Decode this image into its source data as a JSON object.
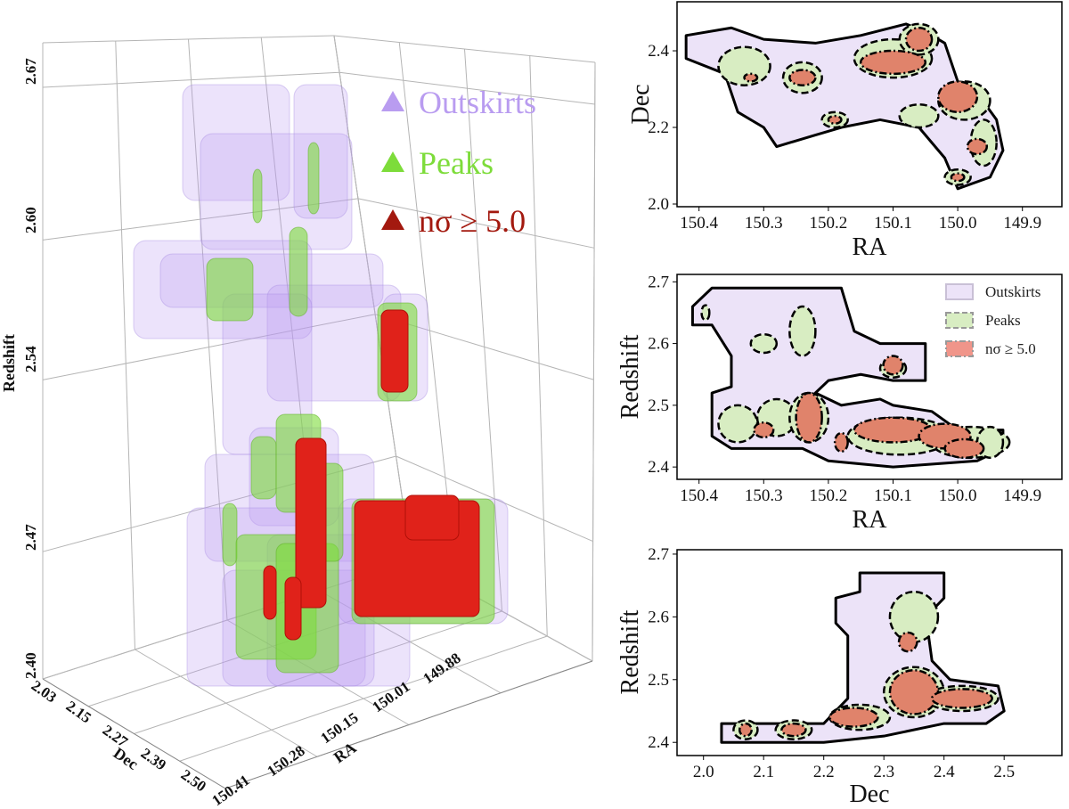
{
  "colors": {
    "outskirts_3d": "#b99cf0",
    "peaks_3d": "#7ddc3a",
    "sigma_3d": "#a3190f",
    "outskirts_fill": "#ece3f8",
    "peaks_fill": "#d8edc2",
    "sigma_fill": "#e0836b",
    "outline": "#000000"
  },
  "chart_data": [
    {
      "type": "3d-volume",
      "legend": {
        "placement": "top-right",
        "entries": [
          "Outskirts",
          "Peaks",
          "nσ ≥ 5.0"
        ]
      },
      "xlabel": "Dec",
      "ylabel": "RA",
      "zlabel": "Redshift",
      "dec_ticks": [
        "2.03",
        "2.15",
        "2.27",
        "2.39",
        "2.50"
      ],
      "ra_ticks": [
        "150.41",
        "150.28",
        "150.15",
        "150.01",
        "149.88"
      ],
      "z_ticks": [
        "2.40",
        "2.47",
        "2.54",
        "2.60",
        "2.67"
      ],
      "grid": true
    },
    {
      "type": "contour",
      "xlabel": "RA",
      "ylabel": "Dec",
      "xlim": [
        150.434,
        149.839
      ],
      "ylim": [
        1.993,
        2.528
      ],
      "xticks": [
        "150.4",
        "150.3",
        "150.2",
        "150.1",
        "150.0",
        "149.9"
      ],
      "yticks": [
        "2.0",
        "2.2",
        "2.4"
      ],
      "outskirts": [
        [
          150.42,
          2.44
        ],
        [
          150.35,
          2.46
        ],
        [
          150.3,
          2.43
        ],
        [
          150.22,
          2.42
        ],
        [
          150.15,
          2.44
        ],
        [
          150.08,
          2.47
        ],
        [
          150.05,
          2.45
        ],
        [
          150.02,
          2.42
        ],
        [
          150.0,
          2.32
        ],
        [
          149.97,
          2.29
        ],
        [
          149.94,
          2.22
        ],
        [
          149.93,
          2.14
        ],
        [
          149.95,
          2.07
        ],
        [
          150.0,
          2.04
        ],
        [
          150.02,
          2.12
        ],
        [
          150.06,
          2.2
        ],
        [
          150.12,
          2.22
        ],
        [
          150.18,
          2.2
        ],
        [
          150.22,
          2.18
        ],
        [
          150.28,
          2.15
        ],
        [
          150.3,
          2.2
        ],
        [
          150.34,
          2.24
        ],
        [
          150.36,
          2.34
        ],
        [
          150.42,
          2.38
        ]
      ],
      "peaks": [
        [
          150.33,
          2.36,
          0.04,
          0.05
        ],
        [
          150.24,
          2.33,
          0.03,
          0.04
        ],
        [
          150.1,
          2.38,
          0.06,
          0.05
        ],
        [
          150.06,
          2.43,
          0.03,
          0.04
        ],
        [
          149.99,
          2.27,
          0.04,
          0.05
        ],
        [
          149.96,
          2.16,
          0.02,
          0.06
        ],
        [
          150.19,
          2.22,
          0.02,
          0.02
        ],
        [
          150.06,
          2.23,
          0.03,
          0.03
        ],
        [
          150.0,
          2.07,
          0.02,
          0.02
        ]
      ],
      "sigma": [
        [
          150.24,
          2.33,
          0.02,
          0.02
        ],
        [
          150.1,
          2.37,
          0.05,
          0.03
        ],
        [
          150.06,
          2.43,
          0.02,
          0.03
        ],
        [
          150.0,
          2.28,
          0.03,
          0.04
        ],
        [
          149.97,
          2.15,
          0.015,
          0.02
        ],
        [
          150.0,
          2.07,
          0.01,
          0.01
        ],
        [
          150.32,
          2.33,
          0.01,
          0.01
        ],
        [
          150.19,
          2.22,
          0.01,
          0.01
        ]
      ]
    },
    {
      "type": "contour",
      "xlabel": "RA",
      "ylabel": "Redshift",
      "xlim": [
        150.434,
        149.839
      ],
      "ylim": [
        2.38,
        2.712
      ],
      "xticks": [
        "150.4",
        "150.3",
        "150.2",
        "150.1",
        "150.0",
        "149.9"
      ],
      "yticks": [
        "2.4",
        "2.5",
        "2.6",
        "2.7"
      ],
      "legend": {
        "placement": "top-right",
        "entries": [
          "Outskirts",
          "Peaks",
          "nσ ≥ 5.0"
        ]
      },
      "outskirts": [
        [
          150.41,
          2.66
        ],
        [
          150.38,
          2.69
        ],
        [
          150.18,
          2.69
        ],
        [
          150.16,
          2.62
        ],
        [
          150.12,
          2.6
        ],
        [
          150.05,
          2.6
        ],
        [
          150.05,
          2.54
        ],
        [
          150.1,
          2.54
        ],
        [
          150.15,
          2.55
        ],
        [
          150.2,
          2.54
        ],
        [
          150.22,
          2.52
        ],
        [
          150.18,
          2.5
        ],
        [
          150.12,
          2.51
        ],
        [
          150.1,
          2.5
        ],
        [
          150.04,
          2.49
        ],
        [
          150.0,
          2.46
        ],
        [
          149.93,
          2.46
        ],
        [
          149.93,
          2.43
        ],
        [
          149.97,
          2.41
        ],
        [
          150.1,
          2.4
        ],
        [
          150.2,
          2.41
        ],
        [
          150.24,
          2.43
        ],
        [
          150.3,
          2.43
        ],
        [
          150.35,
          2.43
        ],
        [
          150.38,
          2.45
        ],
        [
          150.38,
          2.52
        ],
        [
          150.35,
          2.53
        ],
        [
          150.35,
          2.58
        ],
        [
          150.38,
          2.63
        ],
        [
          150.41,
          2.63
        ]
      ],
      "peaks": [
        [
          150.3,
          2.6,
          0.02,
          0.015
        ],
        [
          150.24,
          2.62,
          0.02,
          0.04
        ],
        [
          150.1,
          2.56,
          0.02,
          0.015
        ],
        [
          150.34,
          2.47,
          0.03,
          0.03
        ],
        [
          150.28,
          2.48,
          0.03,
          0.03
        ],
        [
          150.23,
          2.48,
          0.03,
          0.04
        ],
        [
          150.09,
          2.45,
          0.08,
          0.03
        ],
        [
          149.98,
          2.44,
          0.06,
          0.025
        ],
        [
          149.95,
          2.44,
          0.02,
          0.025
        ],
        [
          150.39,
          2.65,
          0.006,
          0.012
        ]
      ],
      "sigma": [
        [
          150.1,
          2.565,
          0.015,
          0.015
        ],
        [
          150.3,
          2.46,
          0.015,
          0.012
        ],
        [
          150.23,
          2.48,
          0.02,
          0.04
        ],
        [
          150.18,
          2.44,
          0.01,
          0.015
        ],
        [
          150.1,
          2.46,
          0.06,
          0.02
        ],
        [
          150.02,
          2.45,
          0.04,
          0.02
        ],
        [
          149.99,
          2.43,
          0.03,
          0.015
        ]
      ]
    },
    {
      "type": "contour",
      "xlabel": "Dec",
      "ylabel": "Redshift",
      "xlim": [
        1.956,
        2.596
      ],
      "ylim": [
        2.379,
        2.707
      ],
      "xticks": [
        "2.0",
        "2.1",
        "2.2",
        "2.3",
        "2.4",
        "2.5"
      ],
      "yticks": [
        "2.4",
        "2.5",
        "2.6",
        "2.7"
      ],
      "outskirts": [
        [
          2.03,
          2.43
        ],
        [
          2.2,
          2.43
        ],
        [
          2.24,
          2.47
        ],
        [
          2.24,
          2.57
        ],
        [
          2.22,
          2.59
        ],
        [
          2.22,
          2.63
        ],
        [
          2.26,
          2.64
        ],
        [
          2.26,
          2.67
        ],
        [
          2.4,
          2.67
        ],
        [
          2.4,
          2.63
        ],
        [
          2.37,
          2.6
        ],
        [
          2.38,
          2.53
        ],
        [
          2.41,
          2.5
        ],
        [
          2.49,
          2.49
        ],
        [
          2.5,
          2.45
        ],
        [
          2.47,
          2.43
        ],
        [
          2.4,
          2.43
        ],
        [
          2.3,
          2.41
        ],
        [
          2.2,
          2.4
        ],
        [
          2.03,
          2.4
        ]
      ],
      "peaks": [
        [
          2.35,
          2.6,
          0.04,
          0.04
        ],
        [
          2.07,
          2.42,
          0.02,
          0.015
        ],
        [
          2.15,
          2.42,
          0.03,
          0.015
        ],
        [
          2.26,
          2.44,
          0.05,
          0.02
        ],
        [
          2.35,
          2.48,
          0.05,
          0.04
        ],
        [
          2.43,
          2.47,
          0.06,
          0.02
        ]
      ],
      "sigma": [
        [
          2.07,
          2.42,
          0.01,
          0.01
        ],
        [
          2.15,
          2.42,
          0.02,
          0.01
        ],
        [
          2.25,
          2.44,
          0.04,
          0.015
        ],
        [
          2.34,
          2.56,
          0.015,
          0.015
        ],
        [
          2.35,
          2.48,
          0.04,
          0.035
        ],
        [
          2.43,
          2.47,
          0.05,
          0.015
        ]
      ]
    }
  ]
}
